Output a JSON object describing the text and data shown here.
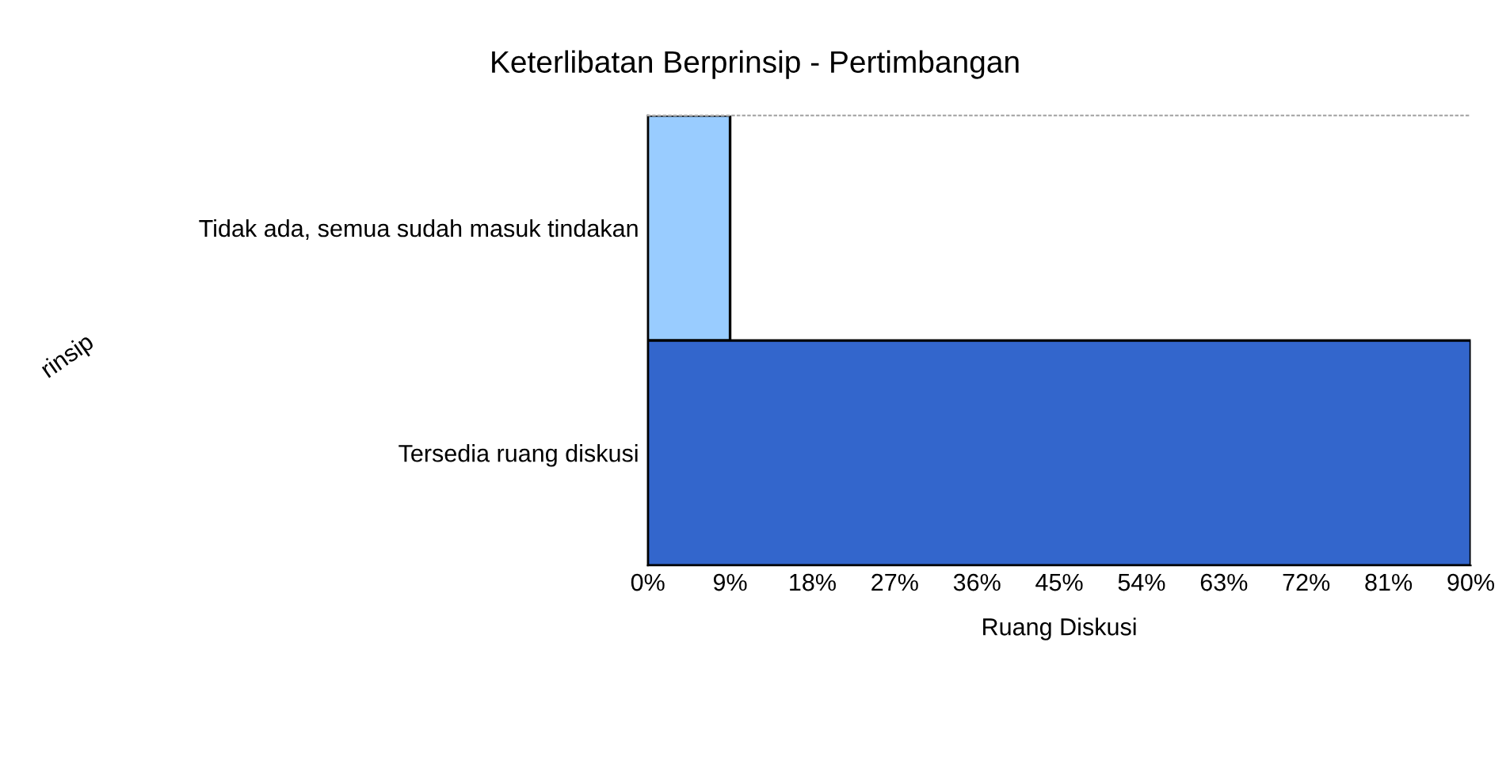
{
  "chart_data": {
    "type": "bar",
    "orientation": "horizontal",
    "title": "Keterlibatan Berprinsip - Pertimbangan",
    "xlabel": "Ruang Diskusi",
    "ylabel": "rinsip",
    "categories": [
      "Tidak ada, semua sudah masuk tindakan",
      "Tersedia ruang diskusi"
    ],
    "values": [
      9,
      90
    ],
    "colors": [
      "#99ccff",
      "#3366cc"
    ],
    "xlim": [
      0,
      90
    ],
    "xticks": [
      {
        "value": 0,
        "label": "0%"
      },
      {
        "value": 9,
        "label": "9%"
      },
      {
        "value": 18,
        "label": "18%"
      },
      {
        "value": 27,
        "label": "27%"
      },
      {
        "value": 36,
        "label": "36%"
      },
      {
        "value": 45,
        "label": "45%"
      },
      {
        "value": 54,
        "label": "54%"
      },
      {
        "value": 63,
        "label": "63%"
      },
      {
        "value": 72,
        "label": "72%"
      },
      {
        "value": 81,
        "label": "81%"
      },
      {
        "value": 90,
        "label": "90%"
      }
    ],
    "grid": false,
    "legend": false
  }
}
